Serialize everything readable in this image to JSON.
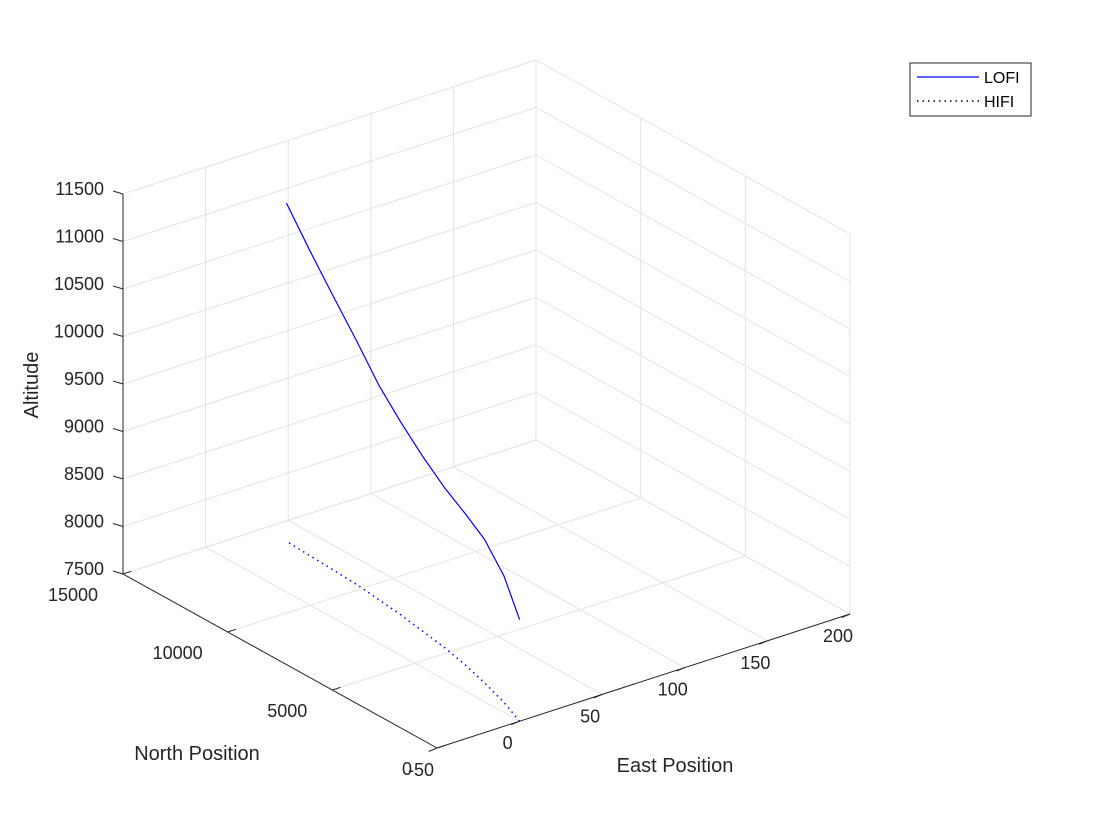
{
  "chart_data": {
    "type": "line3d",
    "title": "",
    "xlabel": "East Position",
    "ylabel": "North Position",
    "zlabel": "Altitude",
    "xlim": [
      -50,
      200
    ],
    "ylim": [
      0,
      15000
    ],
    "zlim": [
      7500,
      11500
    ],
    "xticks": [
      -50,
      0,
      50,
      100,
      150,
      200
    ],
    "yticks": [
      0,
      5000,
      10000,
      15000
    ],
    "zticks": [
      7500,
      8000,
      8500,
      9000,
      9500,
      10000,
      10500,
      11000,
      11500
    ],
    "grid": true,
    "legend_location": "top-right",
    "series": [
      {
        "name": "LOFI",
        "color": "#0000ff",
        "style": "solid",
        "x": [
          0,
          7,
          13,
          18,
          22,
          25,
          28,
          30,
          32,
          33,
          34,
          35
        ],
        "y": [
          0,
          1300,
          2700,
          4000,
          5300,
          6600,
          7900,
          9100,
          10300,
          11500,
          12700,
          13900
        ],
        "z": [
          8570,
          8830,
          9010,
          9090,
          9180,
          9340,
          9530,
          9760,
          10060,
          10380,
          10710,
          11060
        ]
      },
      {
        "name": "HIFI",
        "color": "#0000ff",
        "style": "dotted",
        "x": [
          0,
          7,
          13,
          18,
          22,
          25,
          28,
          30,
          32,
          33,
          34,
          35
        ],
        "y": [
          0,
          1300,
          2700,
          4000,
          5300,
          6600,
          7900,
          9100,
          10300,
          11500,
          12700,
          13900
        ],
        "z": [
          7500,
          7500,
          7500,
          7500,
          7500,
          7500,
          7500,
          7500,
          7500,
          7500,
          7500,
          7500
        ]
      }
    ]
  }
}
